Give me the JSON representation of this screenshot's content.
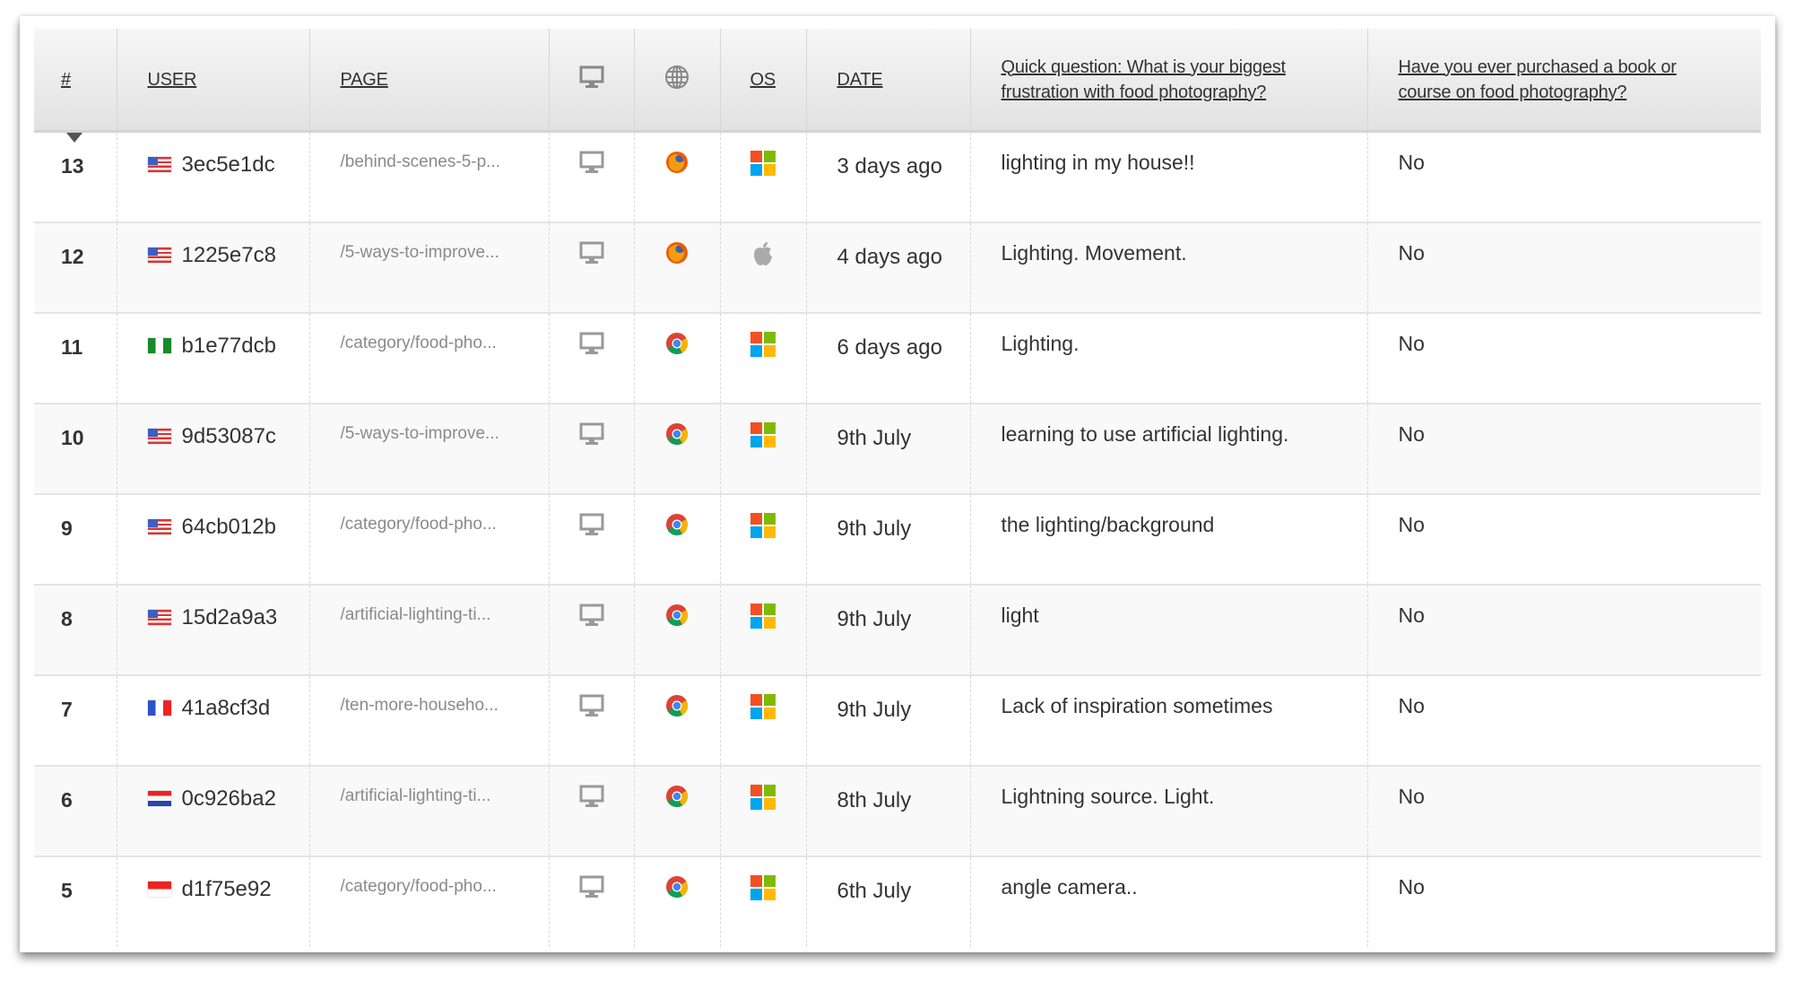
{
  "headers": {
    "num": "#",
    "user": "USER",
    "page": "PAGE",
    "device_icon": "desktop-icon",
    "browser_icon": "globe-icon",
    "os": "OS",
    "date": "DATE",
    "q1": "Quick question: What is your biggest frustration with food photography?",
    "q2": "Have you ever purchased a book or course on food photography?"
  },
  "sort": {
    "column": "#",
    "direction": "descending"
  },
  "rows": [
    {
      "num": "13",
      "flag": "us",
      "user": "3ec5e1dc",
      "page": "/behind-scenes-5-p...",
      "device": "desktop",
      "browser": "firefox",
      "os": "windows",
      "date": "3 days ago",
      "q1": "lighting in my house!!",
      "q2": "No"
    },
    {
      "num": "12",
      "flag": "us",
      "user": "1225e7c8",
      "page": "/5-ways-to-improve...",
      "device": "desktop",
      "browser": "firefox",
      "os": "apple",
      "date": "4 days ago",
      "q1": "Lighting. Movement.",
      "q2": "No"
    },
    {
      "num": "11",
      "flag": "ng",
      "user": "b1e77dcb",
      "page": "/category/food-pho...",
      "device": "desktop",
      "browser": "chrome",
      "os": "windows",
      "date": "6 days ago",
      "q1": "Lighting.",
      "q2": "No"
    },
    {
      "num": "10",
      "flag": "us",
      "user": "9d53087c",
      "page": "/5-ways-to-improve...",
      "device": "desktop",
      "browser": "chrome",
      "os": "windows",
      "date": "9th July",
      "q1": "learning to use artificial lighting.",
      "q2": "No"
    },
    {
      "num": "9",
      "flag": "us",
      "user": "64cb012b",
      "page": "/category/food-pho...",
      "device": "desktop",
      "browser": "chrome",
      "os": "windows",
      "date": "9th July",
      "q1": "the lighting/background",
      "q2": "No"
    },
    {
      "num": "8",
      "flag": "us",
      "user": "15d2a9a3",
      "page": "/artificial-lighting-ti...",
      "device": "desktop",
      "browser": "chrome",
      "os": "windows",
      "date": "9th July",
      "q1": "light",
      "q2": "No"
    },
    {
      "num": "7",
      "flag": "fr",
      "user": "41a8cf3d",
      "page": "/ten-more-househo...",
      "device": "desktop",
      "browser": "chrome",
      "os": "windows",
      "date": "9th July",
      "q1": "Lack of inspiration sometimes",
      "q2": "No"
    },
    {
      "num": "6",
      "flag": "hr",
      "user": "0c926ba2",
      "page": "/artificial-lighting-ti...",
      "device": "desktop",
      "browser": "chrome",
      "os": "windows",
      "date": "8th July",
      "q1": "Lightning source. Light.",
      "q2": "No"
    },
    {
      "num": "5",
      "flag": "id",
      "user": "d1f75e92",
      "page": "/category/food-pho...",
      "device": "desktop",
      "browser": "chrome",
      "os": "windows",
      "date": "6th July",
      "q1": "angle camera..",
      "q2": "No"
    }
  ]
}
